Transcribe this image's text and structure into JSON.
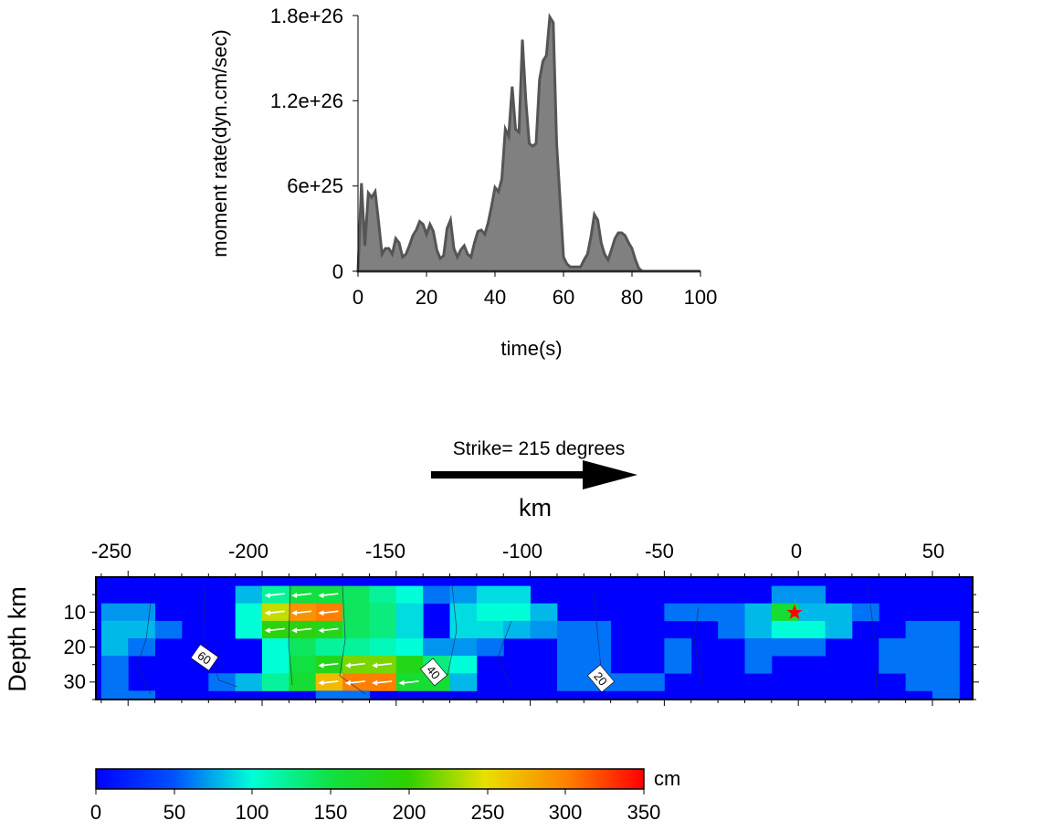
{
  "chart_data": [
    {
      "type": "area",
      "xlabel": "time(s)",
      "ylabel": "moment rate(dyn.cm/sec)",
      "xlim": [
        0,
        100
      ],
      "ylim": [
        0,
        1.8e+26
      ],
      "xticks": [
        "0",
        "20",
        "40",
        "60",
        "80",
        "100"
      ],
      "yticks": [
        "0",
        "6e+25",
        "1.2e+26",
        "1.8e+26"
      ],
      "colors": {
        "fill": "#808080",
        "line": "#555555"
      },
      "x": [
        0,
        1,
        2,
        3,
        4,
        5,
        6,
        7,
        8,
        9,
        10,
        11,
        12,
        13,
        14,
        15,
        16,
        17,
        18,
        19,
        20,
        21,
        22,
        23,
        24,
        25,
        26,
        27,
        28,
        29,
        30,
        31,
        32,
        33,
        34,
        35,
        36,
        37,
        38,
        39,
        40,
        41,
        42,
        43,
        44,
        45,
        46,
        47,
        48,
        49,
        50,
        51,
        52,
        53,
        54,
        55,
        56,
        57,
        58,
        59,
        60,
        61,
        62,
        63,
        64,
        65,
        66,
        67,
        68,
        69,
        70,
        71,
        72,
        73,
        74,
        75,
        76,
        77,
        78,
        79,
        80,
        81,
        82,
        83,
        84,
        85,
        86,
        88,
        90,
        92,
        94,
        96,
        98,
        100
      ],
      "y": [
        0,
        6.2e+25,
        1.8e+25,
        5.5e+25,
        5.2e+25,
        5.6e+25,
        3.5e+25,
        1.2e+25,
        1.6e+25,
        1.6e+25,
        1.2e+25,
        2.3e+25,
        2e+25,
        1e+25,
        1.2e+25,
        1.8e+25,
        2.5e+25,
        2.9e+25,
        3.5e+25,
        3.3e+25,
        2.6e+25,
        3.3e+25,
        2.8e+25,
        1.5e+25,
        9e+24,
        1.1e+25,
        3e+25,
        3.6e+25,
        1.6e+25,
        1e+25,
        1.5e+25,
        1.8e+25,
        1.2e+25,
        1e+25,
        2e+25,
        2.8e+25,
        2.9e+25,
        2.6e+25,
        3.4e+25,
        4.6e+25,
        5.9e+25,
        5.6e+25,
        6.5e+25,
        1e+26,
        9.5e+25,
        1.3e+26,
        1e+26,
        9.8e+25,
        1.63e+26,
        1.2e+26,
        9e+25,
        8.8e+25,
        9e+25,
        1.35e+26,
        1.48e+26,
        1.52e+26,
        1.79e+26,
        1.75e+26,
        9e+25,
        5e+25,
        1e+25,
        5e+24,
        3e+24,
        3e+24,
        3e+24,
        3e+24,
        8e+24,
        1.2e+25,
        2.4e+25,
        4e+25,
        3.6e+25,
        2e+25,
        1.2e+25,
        8e+24,
        1.5e+25,
        2.3e+25,
        2.7e+25,
        2.7e+25,
        2.5e+25,
        2e+25,
        1.6e+25,
        8e+24,
        2e+24,
        0,
        0,
        0,
        0,
        0,
        0,
        0,
        0,
        0,
        0,
        0
      ]
    },
    {
      "type": "heatmap",
      "title": "Strike= 215 degrees",
      "xlabel": "km",
      "ylabel": "Depth km",
      "xlim": [
        -262,
        65
      ],
      "ylim": [
        0,
        35
      ],
      "xticks": [
        "-250",
        "-200",
        "-150",
        "-100",
        "-50",
        "0",
        "50"
      ],
      "yticks": [
        "10",
        "20",
        "30"
      ],
      "cell_size_km": [
        10,
        5
      ],
      "contour_labels": [
        "60",
        "40",
        "20"
      ],
      "hypocenter": {
        "x": 0,
        "y": 10,
        "marker": "red-star"
      },
      "colorbar": {
        "ticks": [
          "0",
          "50",
          "100",
          "150",
          "200",
          "250",
          "300",
          "350"
        ],
        "unit": "cm",
        "range": [
          0,
          350
        ]
      },
      "cells": [
        {
          "x": -205,
          "y": 5,
          "v": 80
        },
        {
          "x": -195,
          "y": 5,
          "v": 120
        },
        {
          "x": -185,
          "y": 5,
          "v": 150
        },
        {
          "x": -175,
          "y": 5,
          "v": 150
        },
        {
          "x": -165,
          "y": 5,
          "v": 140
        },
        {
          "x": -155,
          "y": 5,
          "v": 120
        },
        {
          "x": -145,
          "y": 5,
          "v": 100
        },
        {
          "x": -135,
          "y": 5,
          "v": 60
        },
        {
          "x": -125,
          "y": 5,
          "v": 70
        },
        {
          "x": -115,
          "y": 5,
          "v": 90
        },
        {
          "x": -105,
          "y": 5,
          "v": 90
        },
        {
          "x": -5,
          "y": 5,
          "v": 70
        },
        {
          "x": 5,
          "y": 5,
          "v": 70
        },
        {
          "x": -255,
          "y": 10,
          "v": 70
        },
        {
          "x": -245,
          "y": 10,
          "v": 70
        },
        {
          "x": -205,
          "y": 10,
          "v": 100
        },
        {
          "x": -195,
          "y": 10,
          "v": 240
        },
        {
          "x": -185,
          "y": 10,
          "v": 290
        },
        {
          "x": -175,
          "y": 10,
          "v": 300
        },
        {
          "x": -165,
          "y": 10,
          "v": 140
        },
        {
          "x": -155,
          "y": 10,
          "v": 130
        },
        {
          "x": -145,
          "y": 10,
          "v": 90
        },
        {
          "x": -125,
          "y": 10,
          "v": 90
        },
        {
          "x": -115,
          "y": 10,
          "v": 100
        },
        {
          "x": -105,
          "y": 10,
          "v": 100
        },
        {
          "x": -95,
          "y": 10,
          "v": 80
        },
        {
          "x": -45,
          "y": 10,
          "v": 60
        },
        {
          "x": -35,
          "y": 10,
          "v": 60
        },
        {
          "x": -25,
          "y": 10,
          "v": 60
        },
        {
          "x": -15,
          "y": 10,
          "v": 80
        },
        {
          "x": -5,
          "y": 10,
          "v": 160
        },
        {
          "x": 5,
          "y": 10,
          "v": 80
        },
        {
          "x": 15,
          "y": 10,
          "v": 80
        },
        {
          "x": 25,
          "y": 10,
          "v": 60
        },
        {
          "x": -255,
          "y": 15,
          "v": 80
        },
        {
          "x": -245,
          "y": 15,
          "v": 80
        },
        {
          "x": -235,
          "y": 15,
          "v": 60
        },
        {
          "x": -205,
          "y": 15,
          "v": 100
        },
        {
          "x": -195,
          "y": 15,
          "v": 190
        },
        {
          "x": -185,
          "y": 15,
          "v": 190
        },
        {
          "x": -175,
          "y": 15,
          "v": 180
        },
        {
          "x": -165,
          "y": 15,
          "v": 140
        },
        {
          "x": -155,
          "y": 15,
          "v": 130
        },
        {
          "x": -145,
          "y": 15,
          "v": 90
        },
        {
          "x": -125,
          "y": 15,
          "v": 90
        },
        {
          "x": -115,
          "y": 15,
          "v": 90
        },
        {
          "x": -105,
          "y": 15,
          "v": 80
        },
        {
          "x": -95,
          "y": 15,
          "v": 70
        },
        {
          "x": -85,
          "y": 15,
          "v": 60
        },
        {
          "x": -75,
          "y": 15,
          "v": 60
        },
        {
          "x": -25,
          "y": 15,
          "v": 60
        },
        {
          "x": -15,
          "y": 15,
          "v": 80
        },
        {
          "x": -5,
          "y": 15,
          "v": 100
        },
        {
          "x": 5,
          "y": 15,
          "v": 100
        },
        {
          "x": 15,
          "y": 15,
          "v": 80
        },
        {
          "x": 45,
          "y": 15,
          "v": 60
        },
        {
          "x": 55,
          "y": 15,
          "v": 60
        },
        {
          "x": -255,
          "y": 20,
          "v": 80
        },
        {
          "x": -245,
          "y": 20,
          "v": 60
        },
        {
          "x": -195,
          "y": 20,
          "v": 100
        },
        {
          "x": -185,
          "y": 20,
          "v": 140
        },
        {
          "x": -175,
          "y": 20,
          "v": 120
        },
        {
          "x": -165,
          "y": 20,
          "v": 120
        },
        {
          "x": -155,
          "y": 20,
          "v": 110
        },
        {
          "x": -145,
          "y": 20,
          "v": 100
        },
        {
          "x": -135,
          "y": 20,
          "v": 70
        },
        {
          "x": -125,
          "y": 20,
          "v": 70
        },
        {
          "x": -115,
          "y": 20,
          "v": 60
        },
        {
          "x": -85,
          "y": 20,
          "v": 60
        },
        {
          "x": -75,
          "y": 20,
          "v": 60
        },
        {
          "x": -45,
          "y": 20,
          "v": 60
        },
        {
          "x": -15,
          "y": 20,
          "v": 60
        },
        {
          "x": -5,
          "y": 20,
          "v": 60
        },
        {
          "x": 5,
          "y": 20,
          "v": 60
        },
        {
          "x": 35,
          "y": 20,
          "v": 60
        },
        {
          "x": 45,
          "y": 20,
          "v": 60
        },
        {
          "x": 55,
          "y": 20,
          "v": 60
        },
        {
          "x": -255,
          "y": 25,
          "v": 60
        },
        {
          "x": -195,
          "y": 25,
          "v": 100
        },
        {
          "x": -185,
          "y": 25,
          "v": 150
        },
        {
          "x": -175,
          "y": 25,
          "v": 180
        },
        {
          "x": -165,
          "y": 25,
          "v": 220
        },
        {
          "x": -155,
          "y": 25,
          "v": 220
        },
        {
          "x": -145,
          "y": 25,
          "v": 180
        },
        {
          "x": -135,
          "y": 25,
          "v": 130
        },
        {
          "x": -125,
          "y": 25,
          "v": 100
        },
        {
          "x": -85,
          "y": 25,
          "v": 60
        },
        {
          "x": -75,
          "y": 25,
          "v": 60
        },
        {
          "x": -45,
          "y": 25,
          "v": 60
        },
        {
          "x": -15,
          "y": 25,
          "v": 60
        },
        {
          "x": 35,
          "y": 25,
          "v": 60
        },
        {
          "x": 45,
          "y": 25,
          "v": 60
        },
        {
          "x": 55,
          "y": 25,
          "v": 60
        },
        {
          "x": -255,
          "y": 30,
          "v": 60
        },
        {
          "x": -215,
          "y": 30,
          "v": 60
        },
        {
          "x": -205,
          "y": 30,
          "v": 80
        },
        {
          "x": -195,
          "y": 30,
          "v": 120
        },
        {
          "x": -185,
          "y": 30,
          "v": 160
        },
        {
          "x": -175,
          "y": 30,
          "v": 270
        },
        {
          "x": -165,
          "y": 30,
          "v": 300
        },
        {
          "x": -155,
          "y": 30,
          "v": 300
        },
        {
          "x": -145,
          "y": 30,
          "v": 160
        },
        {
          "x": -135,
          "y": 30,
          "v": 160
        },
        {
          "x": -125,
          "y": 30,
          "v": 80
        },
        {
          "x": -85,
          "y": 30,
          "v": 60
        },
        {
          "x": -75,
          "y": 30,
          "v": 60
        },
        {
          "x": -65,
          "y": 30,
          "v": 60
        },
        {
          "x": -55,
          "y": 30,
          "v": 60
        },
        {
          "x": 45,
          "y": 30,
          "v": 60
        },
        {
          "x": 55,
          "y": 30,
          "v": 60
        },
        {
          "x": -255,
          "y": 35,
          "v": 60
        },
        {
          "x": -245,
          "y": 35,
          "v": 60
        },
        {
          "x": -175,
          "y": 35,
          "v": 60
        },
        {
          "x": -165,
          "y": 35,
          "v": 60
        },
        {
          "x": 55,
          "y": 35,
          "v": 60
        }
      ],
      "arrows": [
        {
          "x": -195,
          "y": 5
        },
        {
          "x": -185,
          "y": 5
        },
        {
          "x": -175,
          "y": 5
        },
        {
          "x": -195,
          "y": 10
        },
        {
          "x": -185,
          "y": 10
        },
        {
          "x": -175,
          "y": 10
        },
        {
          "x": -195,
          "y": 15
        },
        {
          "x": -185,
          "y": 15
        },
        {
          "x": -175,
          "y": 15
        },
        {
          "x": -175,
          "y": 25
        },
        {
          "x": -165,
          "y": 25
        },
        {
          "x": -155,
          "y": 25
        },
        {
          "x": -175,
          "y": 30
        },
        {
          "x": -165,
          "y": 30
        },
        {
          "x": -155,
          "y": 30
        },
        {
          "x": -145,
          "y": 30
        }
      ]
    }
  ]
}
